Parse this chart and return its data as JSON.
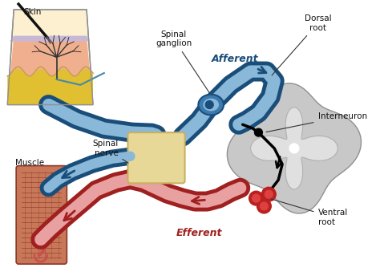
{
  "background_color": "#ffffff",
  "labels": {
    "skin": "Skin",
    "spinal_ganglion": "Spinal\nganglion",
    "spinal_nerve": "Spinal\nnerve",
    "afferent": "Afferent",
    "efferent": "Efferent",
    "dorsal_root": "Dorsal\nroot",
    "interneuron": "Interneuron",
    "ventral_root": "Ventral\nroot",
    "muscle": "Muscle"
  },
  "colors": {
    "blue_dark": "#1a4e7a",
    "blue_mid": "#3a7ab0",
    "blue_light": "#8ab8d8",
    "red_dark": "#a02020",
    "red_mid": "#c85050",
    "red_light": "#e8a0a0",
    "spinal_cord_outer": "#c8c8c8",
    "spinal_cord_inner": "#e0e0e0",
    "vertebra": "#e8d898",
    "vertebra_edge": "#c8b060",
    "skin_cream": "#fdf0d0",
    "skin_pink": "#f0b898",
    "skin_yellow": "#e8c840",
    "skin_edge": "#888888",
    "muscle_main": "#c87858",
    "muscle_edge": "#8b3828",
    "ganglion_outer": "#3a7ab0",
    "ganglion_inner": "#8ab8d8",
    "black": "#111111",
    "white": "#ffffff"
  },
  "figsize": [
    4.74,
    3.49
  ],
  "dpi": 100
}
